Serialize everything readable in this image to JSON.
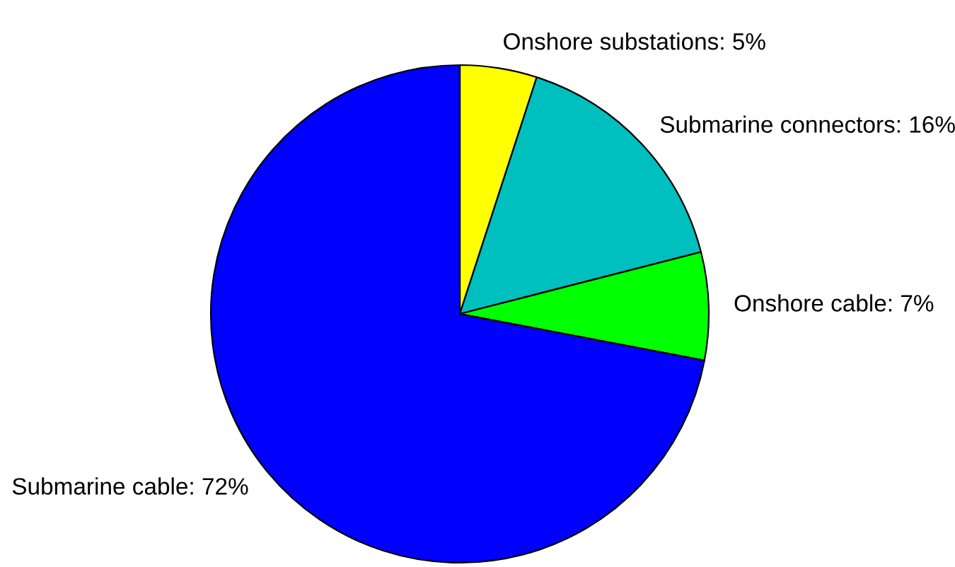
{
  "chart_data": {
    "type": "pie",
    "categories": [
      "Onshore substations",
      "Submarine connectors",
      "Onshore cable",
      "Submarine cable"
    ],
    "values": [
      5,
      16,
      7,
      72
    ],
    "value_labels": [
      "5%",
      "16%",
      "7%",
      "72%"
    ],
    "colors": [
      "#ffff00",
      "#00bfbf",
      "#00ff00",
      "#0000ff"
    ],
    "legend": false
  }
}
